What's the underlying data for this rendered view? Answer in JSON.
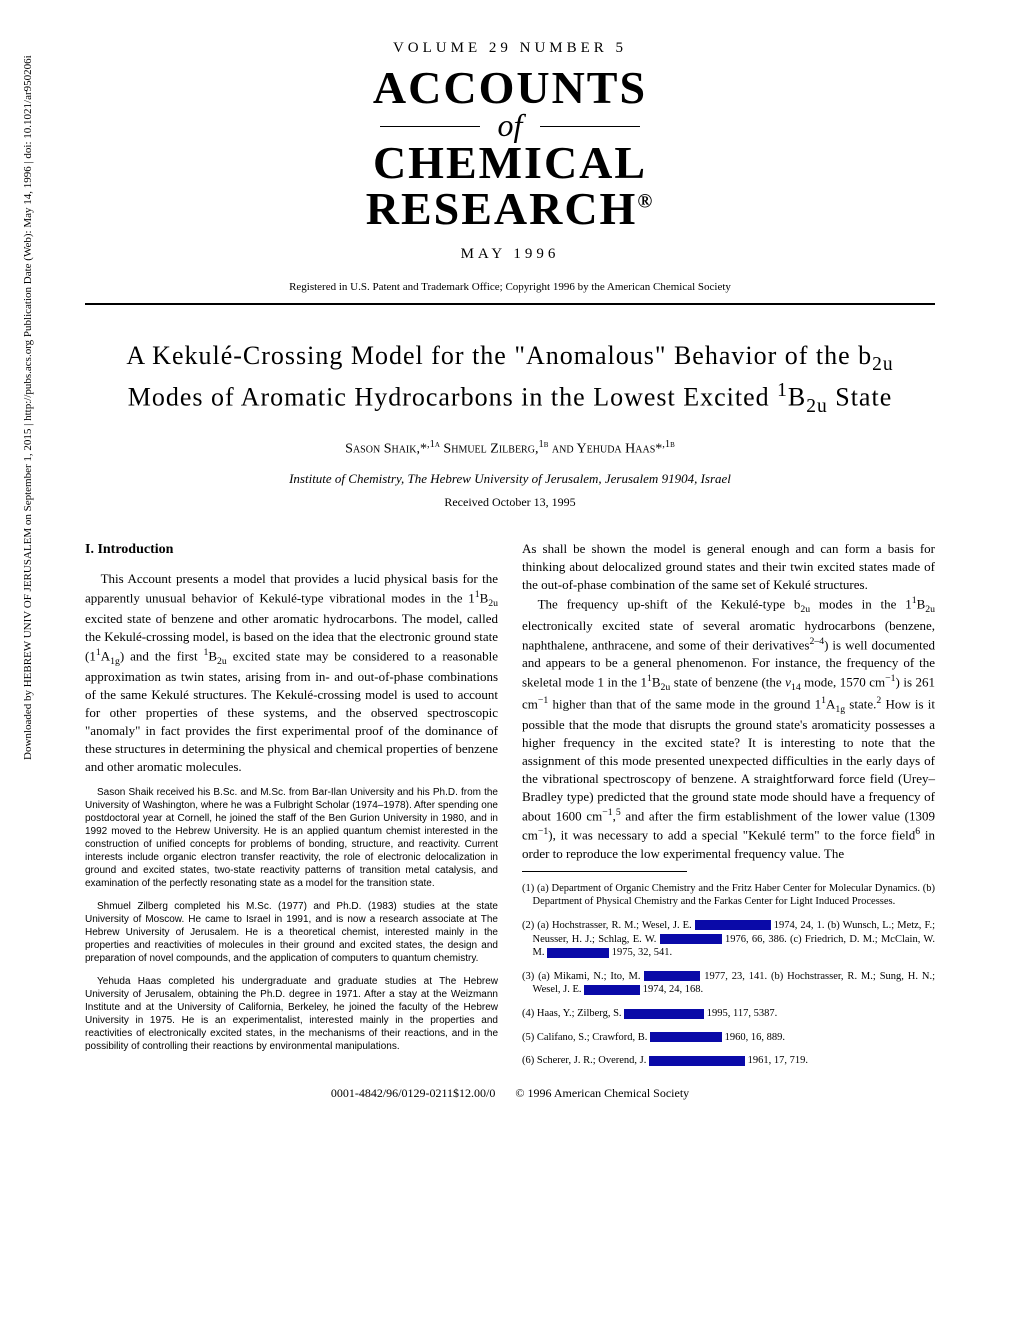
{
  "masthead": {
    "volume_line": "VOLUME 29  NUMBER 5",
    "title_line1": "ACCOUNTS",
    "title_of": "of",
    "title_line2": "CHEMICAL",
    "title_line3": "RESEARCH",
    "trademark": "®",
    "date_line": "MAY 1996",
    "copyright": "Registered in U.S. Patent and Trademark Office; Copyright 1996 by the American Chemical Society"
  },
  "article": {
    "title_html": "A Kekulé-Crossing Model for the \"Anomalous\" Behavior of the b<sub>2u</sub> Modes of Aromatic Hydrocarbons in the Lowest Excited <sup>1</sup>B<sub>2u</sub> State",
    "authors_html": "S<span style='font-variant:small-caps'>ason</span> S<span style='font-variant:small-caps'>haik</span>,*<sup>,1a</sup> S<span style='font-variant:small-caps'>hmuel</span> Z<span style='font-variant:small-caps'>ilberg</span>,<sup>1b</sup> <span style='font-variant:small-caps'>and</span> Y<span style='font-variant:small-caps'>ehuda</span> H<span style='font-variant:small-caps'>aas</span>*<sup>,1b</sup>",
    "affiliation": "Institute of Chemistry, The Hebrew University of Jerusalem, Jerusalem 91904, Israel",
    "received": "Received October 13, 1995"
  },
  "left_column": {
    "heading": "I. Introduction",
    "p1_html": "This Account presents a model that provides a lucid physical basis for the apparently unusual behavior of Kekulé-type vibrational modes in the 1<sup>1</sup>B<sub>2u</sub> excited state of benzene and other aromatic hydrocarbons. The model, called the Kekulé-crossing model, is based on the idea that the electronic ground state (1<sup>1</sup>A<sub>1g</sub>) and the first <sup>1</sup>B<sub>2u</sub> excited state may be considered to a reasonable approximation as twin states, arising from in- and out-of-phase combinations of the same Kekulé structures. The Kekulé-crossing model is used to account for other properties of these systems, and the observed spectroscopic \"anomaly\" in fact provides the first experimental proof of the dominance of these structures in determining the physical and chemical properties of benzene and other aromatic molecules.",
    "bio1": "Sason Shaik received his B.Sc. and M.Sc. from Bar-Ilan University and his Ph.D. from the University of Washington, where he was a Fulbright Scholar (1974–1978). After spending one postdoctoral year at Cornell, he joined the staff of the Ben Gurion University in 1980, and in 1992 moved to the Hebrew University. He is an applied quantum chemist interested in the construction of unified concepts for problems of bonding, structure, and reactivity. Current interests include organic electron transfer reactivity, the role of electronic delocalization in ground and excited states, two-state reactivity patterns of transition metal catalysis, and examination of the perfectly resonating state as a model for the transition state.",
    "bio2": "Shmuel Zilberg completed his M.Sc. (1977) and Ph.D. (1983) studies at the state University of Moscow. He came to Israel in 1991, and is now a research associate at The Hebrew University of Jerusalem. He is a theoretical chemist, interested mainly in the properties and reactivities of molecules in their ground and excited states, the design and preparation of novel compounds, and the application of computers to quantum chemistry.",
    "bio3": "Yehuda Haas completed his undergraduate and graduate studies at The Hebrew University of Jerusalem, obtaining the Ph.D. degree in 1971. After a stay at the Weizmann Institute and at the University of California, Berkeley, he joined the faculty of the Hebrew University in 1975. He is an experimentalist, interested mainly in the properties and reactivities of electronically excited states, in the mechanisms of their reactions, and in the possibility of controlling their reactions by environmental manipulations."
  },
  "right_column": {
    "p1_html": "As shall be shown the model is general enough and can form a basis for thinking about delocalized ground states and their twin excited states made of the out-of-phase combination of the same set of Kekulé structures.",
    "p2_html": "The frequency up-shift of the Kekulé-type b<sub>2u</sub> modes in the 1<sup>1</sup>B<sub>2u</sub> electronically excited state of several aromatic hydrocarbons (benzene, naphthalene, anthracene, and some of their derivatives<sup>2–4</sup>) is well documented and appears to be a general phenomenon. For instance, the frequency of the skeletal mode 1 in the 1<sup>1</sup>B<sub>2u</sub> state of benzene (the <i>ν</i><sub>14</sub> mode, 1570 cm<sup>−1</sup>) is 261 cm<sup>−1</sup> higher than that of the same mode in the ground 1<sup>1</sup>A<sub>1g</sub> state.<sup>2</sup> How is it possible that the mode that disrupts the ground state's aromaticity possesses a higher frequency in the excited state? It is interesting to note that the assignment of this mode presented unexpected difficulties in the early days of the vibrational spectroscopy of benzene. A straightforward force field (Urey–Bradley type) predicted that the ground state mode should have a frequency of about 1600 cm<sup>−1</sup>,<sup>5</sup> and after the firm establishment of the lower value (1309 cm<sup>−1</sup>), it was necessary to add a special \"Kekulé term\" to the force field<sup>6</sup> in order to reproduce the low experimental frequency value. The",
    "ref1": "(1) (a) Department of Organic Chemistry and the Fritz Haber Center for Molecular Dynamics. (b) Department of Physical Chemistry and the Farkas Center for Light Induced Processes.",
    "ref2a": "(2) (a) Hochstrasser, R. M.; Wesel, J. E.",
    "ref2b": " 1974, 24, 1. (b) Wunsch, L.; Metz, F.; Neusser, H. J.; Schlag, E. W.",
    "ref2c": " 1976, 66, 386. (c) Friedrich, D. M.; McClain, W. M.",
    "ref2d": " 1975, 32, 541.",
    "ref3a": "(3) (a) Mikami, N.; Ito, M.",
    "ref3b": " 1977, 23, 141. (b) Hochstrasser, R. M.; Sung, H. N.; Wesel, J. E.",
    "ref3c": " 1974, 24, 168.",
    "ref4a": "(4) Haas, Y.; Zilberg, S.",
    "ref4b": " 1995, 117, 5387.",
    "ref5a": "(5) Califano, S.; Crawford, B.",
    "ref5b": " 1960, 16, 889.",
    "ref6a": "(6) Scherer, J. R.; Overend, J.",
    "ref6b": " 1961, 17, 719."
  },
  "footer": {
    "doi": "0001-4842/96/0129-0211$12.00/0",
    "copy": "© 1996 American Chemical Society"
  },
  "sidebar": {
    "text": "Downloaded by HEBREW UNIV OF JERUSALEM on September 1, 2015 | http://pubs.acs.org   Publication Date (Web): May 14, 1996 | doi: 10.1021/ar950206i"
  },
  "redact_widths": {
    "w1": 76,
    "w2": 62,
    "w3": 62,
    "w4": 56,
    "w5": 56,
    "w6": 80,
    "w7": 72,
    "w8": 96
  }
}
